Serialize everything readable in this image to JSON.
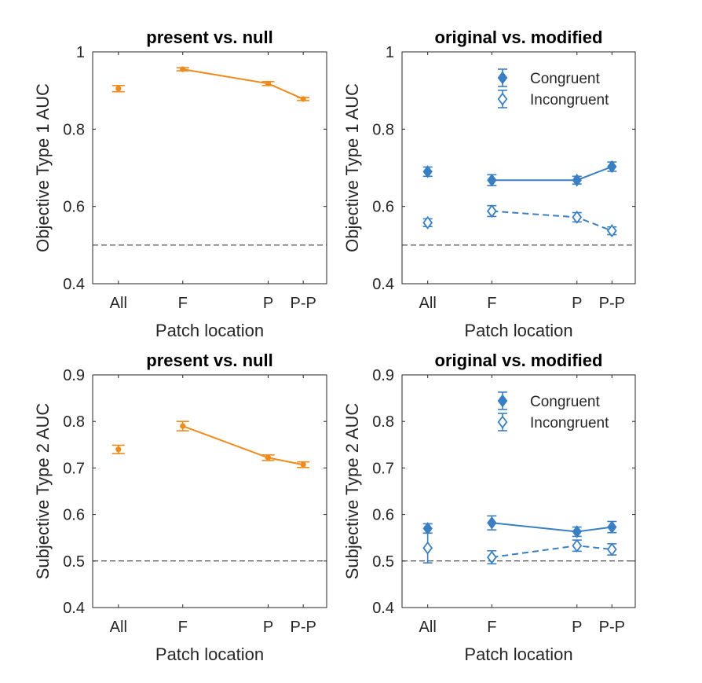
{
  "colors": {
    "orange": "#f08a1c",
    "blue": "#3a7fc2",
    "axis": "#262626",
    "ref": "#262626"
  },
  "chart_data": [
    {
      "type": "line",
      "title": "present vs. null",
      "xlabel": "Patch location",
      "ylabel": "Objective Type 1 AUC",
      "ylim": [
        0.4,
        1.0
      ],
      "yticks": [
        "0.4",
        "0.6",
        "0.8",
        "1"
      ],
      "yticks_val": [
        0.4,
        0.6,
        0.8,
        1.0
      ],
      "categories": [
        "All",
        "F",
        "P",
        "P-P"
      ],
      "reference_line": 0.5,
      "series": [
        {
          "color": "#f08a1c",
          "marker": "dot",
          "connect_from": 1,
          "dashed": false,
          "values": [
            0.905,
            0.955,
            0.918,
            0.878
          ],
          "errors": [
            0.008,
            0.004,
            0.005,
            0.004
          ]
        }
      ]
    },
    {
      "type": "line",
      "title": "original vs. modified",
      "xlabel": "Patch location",
      "ylabel": "Objective Type 1 AUC",
      "ylim": [
        0.4,
        1.0
      ],
      "yticks": [
        "0.4",
        "0.6",
        "0.8",
        "1"
      ],
      "yticks_val": [
        0.4,
        0.6,
        0.8,
        1.0
      ],
      "categories": [
        "All",
        "F",
        "P",
        "P-P"
      ],
      "reference_line": 0.5,
      "legend_position": "top-right",
      "series": [
        {
          "name": "Congruent",
          "color": "#3a7fc2",
          "marker": "diamond-filled",
          "connect_from": 1,
          "dashed": false,
          "values": [
            0.69,
            0.668,
            0.668,
            0.703
          ],
          "errors": [
            0.012,
            0.014,
            0.01,
            0.012
          ]
        },
        {
          "name": "Incongruent",
          "color": "#3a7fc2",
          "marker": "diamond-open",
          "connect_from": 1,
          "dashed": true,
          "values": [
            0.558,
            0.588,
            0.572,
            0.537
          ],
          "errors": [
            0.01,
            0.014,
            0.012,
            0.01
          ]
        }
      ]
    },
    {
      "type": "line",
      "title": "present vs. null",
      "xlabel": "Patch location",
      "ylabel": "Subjective Type 2 AUC",
      "ylim": [
        0.4,
        0.9
      ],
      "yticks": [
        "0.4",
        "0.5",
        "0.6",
        "0.7",
        "0.8",
        "0.9"
      ],
      "yticks_val": [
        0.4,
        0.5,
        0.6,
        0.7,
        0.8,
        0.9
      ],
      "categories": [
        "All",
        "F",
        "P",
        "P-P"
      ],
      "reference_line": 0.5,
      "series": [
        {
          "color": "#f08a1c",
          "marker": "dot",
          "connect_from": 1,
          "dashed": false,
          "values": [
            0.74,
            0.79,
            0.722,
            0.707
          ],
          "errors": [
            0.009,
            0.01,
            0.006,
            0.006
          ]
        }
      ]
    },
    {
      "type": "line",
      "title": "original vs. modified",
      "xlabel": "Patch location",
      "ylabel": "Subjective Type 2 AUC",
      "ylim": [
        0.4,
        0.9
      ],
      "yticks": [
        "0.4",
        "0.5",
        "0.6",
        "0.7",
        "0.8",
        "0.9"
      ],
      "yticks_val": [
        0.4,
        0.5,
        0.6,
        0.7,
        0.8,
        0.9
      ],
      "categories": [
        "All",
        "F",
        "P",
        "P-P"
      ],
      "reference_line": 0.5,
      "legend_position": "top-right",
      "series": [
        {
          "name": "Congruent",
          "color": "#3a7fc2",
          "marker": "diamond-filled",
          "connect_from": 1,
          "dashed": false,
          "values": [
            0.57,
            0.582,
            0.563,
            0.573
          ],
          "errors": [
            0.01,
            0.015,
            0.01,
            0.012
          ]
        },
        {
          "name": "Incongruent",
          "color": "#3a7fc2",
          "marker": "diamond-open",
          "connect_from": 1,
          "dashed": true,
          "values": [
            0.528,
            0.508,
            0.533,
            0.525
          ],
          "errors": [
            0.032,
            0.014,
            0.012,
            0.012
          ]
        }
      ]
    }
  ]
}
